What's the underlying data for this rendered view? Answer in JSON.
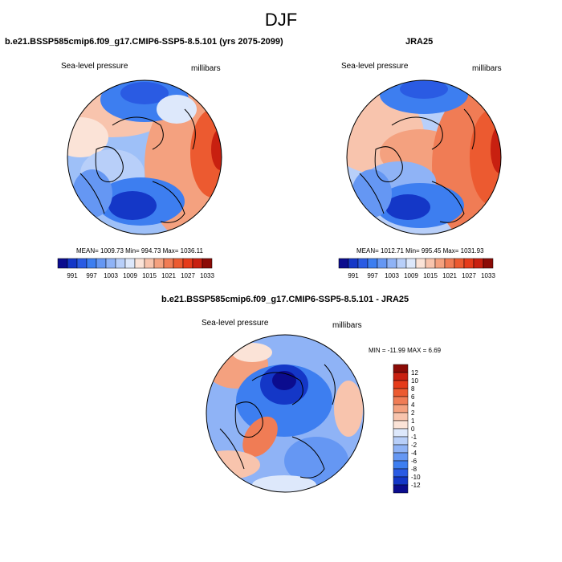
{
  "title": "DJF",
  "left_panel": {
    "title": "b.e21.BSSP585cmip6.f09_g17.CMIP6-SSP5-8.5.101 (yrs 2075-2099)",
    "variable": "Sea-level pressure",
    "units": "millibars",
    "stats": "MEAN= 1009.73  Min= 994.73  Max= 1036.11"
  },
  "right_panel": {
    "title": "JRA25",
    "variable": "Sea-level pressure",
    "units": "millibars",
    "stats": "MEAN= 1012.71  Min= 995.45  Max= 1031.93"
  },
  "diff_panel": {
    "title": "b.e21.BSSP585cmip6.f09_g17.CMIP6-SSP5-8.5.101 - JRA25",
    "variable": "Sea-level pressure",
    "units": "millibars",
    "stats": "MIN = -11.99 MAX =   6.69"
  },
  "colorbar_horizontal": {
    "labels": [
      "991",
      "997",
      "1003",
      "1009",
      "1015",
      "1021",
      "1027",
      "1033"
    ],
    "colors": [
      "#0b0c8e",
      "#1437c7",
      "#2a5be3",
      "#3d7ef0",
      "#6597f3",
      "#8fb3f6",
      "#b8cff9",
      "#dde8fb",
      "#fbe3d7",
      "#f8c4ad",
      "#f4a17f",
      "#f07c55",
      "#ec5a30",
      "#e53b1a",
      "#c82010",
      "#8b0b06"
    ]
  },
  "colorbar_vertical": {
    "labels": [
      "12",
      "10",
      "8",
      "6",
      "4",
      "2",
      "1",
      "0",
      "-1",
      "-2",
      "-4",
      "-6",
      "-8",
      "-10",
      "-12"
    ],
    "colors": [
      "#8b0b06",
      "#c82010",
      "#e53b1a",
      "#ec5a30",
      "#f07c55",
      "#f4a17f",
      "#f8c4ad",
      "#fbe3d7",
      "#dde8fb",
      "#b8cff9",
      "#8fb3f6",
      "#6597f3",
      "#3d7ef0",
      "#2a5be3",
      "#1437c7",
      "#0b0c8e"
    ]
  }
}
